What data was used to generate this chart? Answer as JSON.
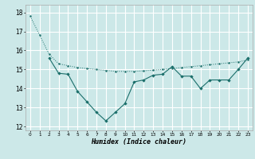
{
  "xlabel": "Humidex (Indice chaleur)",
  "background_color": "#cce8e8",
  "grid_color": "#ffffff",
  "line_color": "#1a6e6a",
  "x_ticks": [
    0,
    1,
    2,
    3,
    4,
    5,
    6,
    7,
    8,
    9,
    10,
    11,
    12,
    13,
    14,
    15,
    16,
    17,
    18,
    19,
    20,
    21,
    22,
    23
  ],
  "ylim": [
    11.8,
    18.4
  ],
  "xlim": [
    -0.5,
    23.5
  ],
  "yticks": [
    12,
    13,
    14,
    15,
    16,
    17,
    18
  ],
  "line1_x": [
    0,
    1,
    2,
    3,
    4,
    5,
    6,
    7,
    8,
    9,
    10,
    11,
    12,
    13,
    14,
    15,
    16,
    17,
    18,
    19,
    20,
    21,
    22,
    23
  ],
  "line1_y": [
    17.8,
    16.8,
    15.8,
    15.3,
    15.2,
    15.1,
    15.05,
    15.0,
    14.95,
    14.9,
    14.9,
    14.9,
    14.93,
    14.97,
    15.0,
    15.05,
    15.1,
    15.15,
    15.2,
    15.25,
    15.3,
    15.35,
    15.4,
    15.5
  ],
  "line2_x": [
    2,
    3,
    4,
    5,
    6,
    7,
    8,
    9,
    10,
    11,
    12,
    13,
    14,
    15,
    16,
    17,
    18,
    19,
    20,
    21,
    22,
    23
  ],
  "line2_y": [
    15.6,
    14.8,
    14.75,
    13.85,
    13.3,
    12.75,
    12.3,
    12.75,
    13.2,
    14.35,
    14.45,
    14.7,
    14.75,
    15.15,
    14.65,
    14.65,
    14.0,
    14.45,
    14.45,
    14.45,
    15.0,
    15.6
  ]
}
